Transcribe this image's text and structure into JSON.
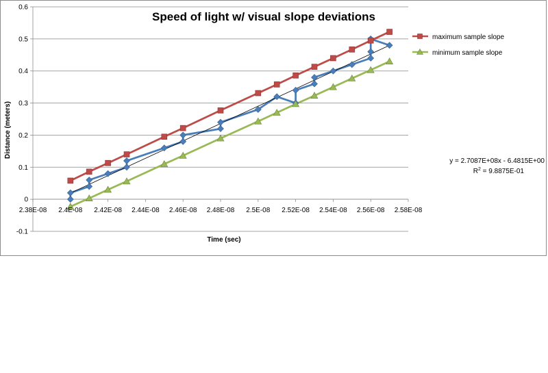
{
  "chart_data": {
    "type": "scatter",
    "title": "Speed of light w/ visual slope deviations",
    "xlabel": "Time (sec)",
    "ylabel": "Distance (meters)",
    "xlim": [
      2.38e-08,
      2.58e-08
    ],
    "ylim": [
      -0.1,
      0.6
    ],
    "x_ticks": [
      2.38e-08,
      2.4e-08,
      2.42e-08,
      2.44e-08,
      2.46e-08,
      2.48e-08,
      2.5e-08,
      2.52e-08,
      2.54e-08,
      2.56e-08,
      2.58e-08
    ],
    "x_tick_labels": [
      "2.38E-08",
      "2.4E-08",
      "2.42E-08",
      "2.44E-08",
      "2.46E-08",
      "2.48E-08",
      "2.5E-08",
      "2.52E-08",
      "2.54E-08",
      "2.56E-08",
      "2.58E-08"
    ],
    "y_ticks": [
      -0.1,
      0,
      0.1,
      0.2,
      0.3,
      0.4,
      0.5,
      0.6
    ],
    "y_tick_labels": [
      "-0.1",
      "0",
      "0.1",
      "0.2",
      "0.3",
      "0.4",
      "0.5",
      "0.6"
    ],
    "grid": "horizontal",
    "legend_position": "right",
    "series": [
      {
        "legend": "",
        "color": "#4a7ebb",
        "marker": "diamond",
        "x": [
          2.4e-08,
          2.4e-08,
          2.41e-08,
          2.41e-08,
          2.42e-08,
          2.43e-08,
          2.43e-08,
          2.45e-08,
          2.46e-08,
          2.46e-08,
          2.48e-08,
          2.48e-08,
          2.5e-08,
          2.51e-08,
          2.52e-08,
          2.52e-08,
          2.53e-08,
          2.53e-08,
          2.54e-08,
          2.55e-08,
          2.56e-08,
          2.56e-08,
          2.56e-08,
          2.57e-08
        ],
        "y": [
          0.0,
          0.02,
          0.04,
          0.06,
          0.08,
          0.1,
          0.12,
          0.16,
          0.18,
          0.2,
          0.22,
          0.24,
          0.28,
          0.32,
          0.3,
          0.34,
          0.36,
          0.38,
          0.4,
          0.42,
          0.44,
          0.46,
          0.5,
          0.48
        ]
      },
      {
        "legend": "maximum sample slope",
        "color": "#be4b48",
        "marker": "square",
        "x": [
          2.4e-08,
          2.41e-08,
          2.42e-08,
          2.43e-08,
          2.45e-08,
          2.46e-08,
          2.48e-08,
          2.5e-08,
          2.51e-08,
          2.52e-08,
          2.53e-08,
          2.54e-08,
          2.55e-08,
          2.56e-08,
          2.57e-08
        ],
        "y": [
          0.058,
          0.086,
          0.113,
          0.14,
          0.195,
          0.222,
          0.277,
          0.331,
          0.358,
          0.386,
          0.413,
          0.44,
          0.467,
          0.495,
          0.522
        ]
      },
      {
        "legend": "minimum sample slope",
        "color": "#98b954",
        "marker": "triangle",
        "x": [
          2.4e-08,
          2.41e-08,
          2.42e-08,
          2.43e-08,
          2.45e-08,
          2.46e-08,
          2.48e-08,
          2.5e-08,
          2.51e-08,
          2.52e-08,
          2.53e-08,
          2.54e-08,
          2.55e-08,
          2.56e-08,
          2.57e-08
        ],
        "y": [
          -0.023,
          0.003,
          0.03,
          0.056,
          0.11,
          0.136,
          0.19,
          0.243,
          0.27,
          0.297,
          0.323,
          0.35,
          0.377,
          0.403,
          0.43
        ]
      }
    ],
    "trendline": {
      "slope": 270870000.0,
      "intercept": -6.4815,
      "x_range": [
        2.4e-08,
        2.57e-08
      ],
      "color": "#000000",
      "equation_text": "y = 2.7087E+08x - 6.4815E+00",
      "r2_prefix": "R",
      "r2_suffix": " = 9.8875E-01",
      "r2_superscript": "2"
    }
  }
}
